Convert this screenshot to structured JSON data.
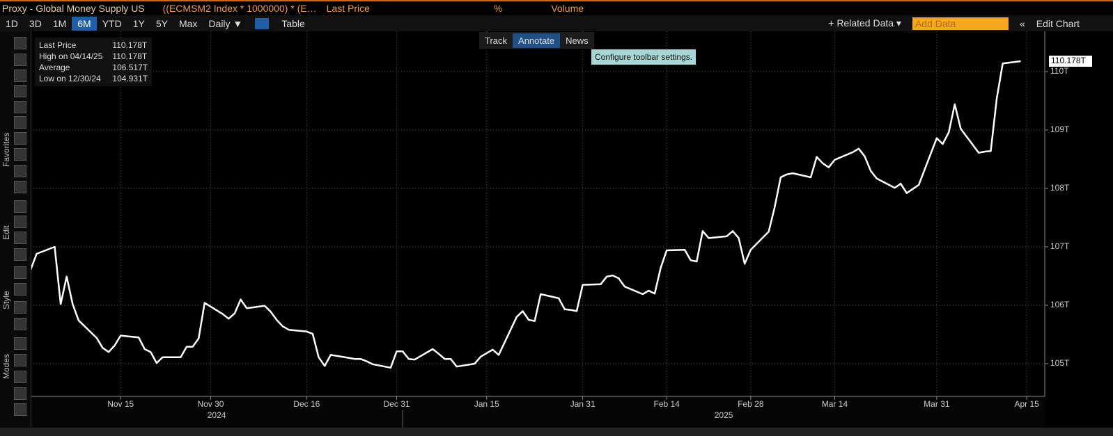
{
  "ui": {
    "header": {
      "title": "Proxy - Global Money Supply US",
      "formula": "((ECMSM2 Index * 1000000) * (E…",
      "field": "Last Price",
      "pct": "%",
      "volume": "Volume"
    },
    "ranges": [
      "1D",
      "3D",
      "1M",
      "6M",
      "YTD",
      "1Y",
      "5Y",
      "Max"
    ],
    "active_range": "6M",
    "period": "Daily ▼",
    "table": "Table",
    "right_tools": {
      "related": "+ Related Data ▾",
      "add": "Add Data",
      "back": "«",
      "edit": "Edit Chart"
    },
    "chart_tools": [
      "Track",
      "Annotate",
      "News"
    ],
    "tooltip": "Configure toolbar settings.",
    "side_labels": [
      "Favorites",
      "Edit",
      "Style",
      "Modes"
    ],
    "legend": [
      {
        "label": "Last Price",
        "value": "110.178T"
      },
      {
        "label": "High on 04/14/25",
        "value": "110.178T"
      },
      {
        "label": "Average",
        "value": "106.517T"
      },
      {
        "label": "Low on 12/30/24",
        "value": "104.931T"
      }
    ]
  },
  "chart_data": {
    "type": "line",
    "x": [
      "2024-10-31",
      "2024-11-01",
      "2024-11-04",
      "2024-11-05",
      "2024-11-06",
      "2024-11-07",
      "2024-11-08",
      "2024-11-11",
      "2024-11-12",
      "2024-11-13",
      "2024-11-14",
      "2024-11-15",
      "2024-11-18",
      "2024-11-19",
      "2024-11-20",
      "2024-11-21",
      "2024-11-22",
      "2024-11-25",
      "2024-11-26",
      "2024-11-27",
      "2024-11-28",
      "2024-11-29",
      "2024-12-02",
      "2024-12-03",
      "2024-12-04",
      "2024-12-05",
      "2024-12-06",
      "2024-12-09",
      "2024-12-10",
      "2024-12-11",
      "2024-12-12",
      "2024-12-13",
      "2024-12-16",
      "2024-12-17",
      "2024-12-18",
      "2024-12-19",
      "2024-12-20",
      "2024-12-23",
      "2024-12-24",
      "2024-12-25",
      "2024-12-26",
      "2024-12-27",
      "2024-12-30",
      "2024-12-31",
      "2025-01-01",
      "2025-01-02",
      "2025-01-03",
      "2025-01-06",
      "2025-01-07",
      "2025-01-08",
      "2025-01-09",
      "2025-01-10",
      "2025-01-13",
      "2025-01-14",
      "2025-01-15",
      "2025-01-16",
      "2025-01-17",
      "2025-01-20",
      "2025-01-21",
      "2025-01-22",
      "2025-01-23",
      "2025-01-24",
      "2025-01-27",
      "2025-01-28",
      "2025-01-29",
      "2025-01-30",
      "2025-01-31",
      "2025-02-03",
      "2025-02-04",
      "2025-02-05",
      "2025-02-06",
      "2025-02-07",
      "2025-02-10",
      "2025-02-11",
      "2025-02-12",
      "2025-02-13",
      "2025-02-14",
      "2025-02-17",
      "2025-02-18",
      "2025-02-19",
      "2025-02-20",
      "2025-02-21",
      "2025-02-24",
      "2025-02-25",
      "2025-02-26",
      "2025-02-27",
      "2025-02-28",
      "2025-03-03",
      "2025-03-04",
      "2025-03-05",
      "2025-03-06",
      "2025-03-07",
      "2025-03-10",
      "2025-03-11",
      "2025-03-12",
      "2025-03-13",
      "2025-03-14",
      "2025-03-17",
      "2025-03-18",
      "2025-03-19",
      "2025-03-20",
      "2025-03-21",
      "2025-03-24",
      "2025-03-25",
      "2025-03-26",
      "2025-03-27",
      "2025-03-28",
      "2025-03-31",
      "2025-04-01",
      "2025-04-02",
      "2025-04-03",
      "2025-04-04",
      "2025-04-07",
      "2025-04-08",
      "2025-04-09",
      "2025-04-10",
      "2025-04-11",
      "2025-04-14"
    ],
    "series": [
      {
        "name": "Last Price",
        "color": "#ffffff",
        "values": [
          106.61,
          106.88,
          107.0,
          106.02,
          106.49,
          106.02,
          105.74,
          105.44,
          105.27,
          105.2,
          105.31,
          105.48,
          105.45,
          105.25,
          105.2,
          105.01,
          105.11,
          105.11,
          105.29,
          105.29,
          105.43,
          106.04,
          105.85,
          105.77,
          105.86,
          106.1,
          105.95,
          105.99,
          105.89,
          105.75,
          105.64,
          105.58,
          105.55,
          105.51,
          105.11,
          104.96,
          105.15,
          105.1,
          105.08,
          105.08,
          105.04,
          104.99,
          104.931,
          105.21,
          105.21,
          105.08,
          105.07,
          105.25,
          105.17,
          105.08,
          105.08,
          104.95,
          105.0,
          105.12,
          105.18,
          105.24,
          105.15,
          105.8,
          105.9,
          105.75,
          105.73,
          106.19,
          106.12,
          105.93,
          105.92,
          105.9,
          106.35,
          106.36,
          106.49,
          106.51,
          106.46,
          106.32,
          106.19,
          106.25,
          106.2,
          106.64,
          106.94,
          106.95,
          106.77,
          106.75,
          107.27,
          107.15,
          107.18,
          107.27,
          107.15,
          106.71,
          106.95,
          107.26,
          107.68,
          108.19,
          108.24,
          108.26,
          108.19,
          108.54,
          108.43,
          108.36,
          108.49,
          108.62,
          108.68,
          108.55,
          108.3,
          108.17,
          108.01,
          108.08,
          107.92,
          107.99,
          108.06,
          108.86,
          108.76,
          108.96,
          109.44,
          109.02,
          108.61,
          108.63,
          108.64,
          109.54,
          110.14,
          110.178
        ]
      }
    ],
    "last_label": "110.178T",
    "xlim": [
      "2024-10-31",
      "2025-04-18"
    ],
    "xticks": [
      {
        "value": "2024-11-15",
        "label": "Nov 15"
      },
      {
        "value": "2024-11-30",
        "label": "Nov 30"
      },
      {
        "value": "2024-12-16",
        "label": "Dec 16"
      },
      {
        "value": "2024-12-31",
        "label": "Dec 31"
      },
      {
        "value": "2025-01-15",
        "label": "Jan 15"
      },
      {
        "value": "2025-01-31",
        "label": "Jan 31"
      },
      {
        "value": "2025-02-14",
        "label": "Feb 14"
      },
      {
        "value": "2025-02-28",
        "label": "Feb 28"
      },
      {
        "value": "2025-03-14",
        "label": "Mar 14"
      },
      {
        "value": "2025-03-31",
        "label": "Mar 31"
      },
      {
        "value": "2025-04-15",
        "label": "Apr 15"
      }
    ],
    "x_years": [
      "2024",
      "2025"
    ],
    "ylim": [
      104.44,
      110.69
    ],
    "yticks": [
      {
        "value": 105,
        "label": "105T"
      },
      {
        "value": 106,
        "label": "106T"
      },
      {
        "value": 107,
        "label": "107T"
      },
      {
        "value": 108,
        "label": "108T"
      },
      {
        "value": 109,
        "label": "109T"
      },
      {
        "value": 110,
        "label": "110T"
      }
    ],
    "grid": true
  }
}
